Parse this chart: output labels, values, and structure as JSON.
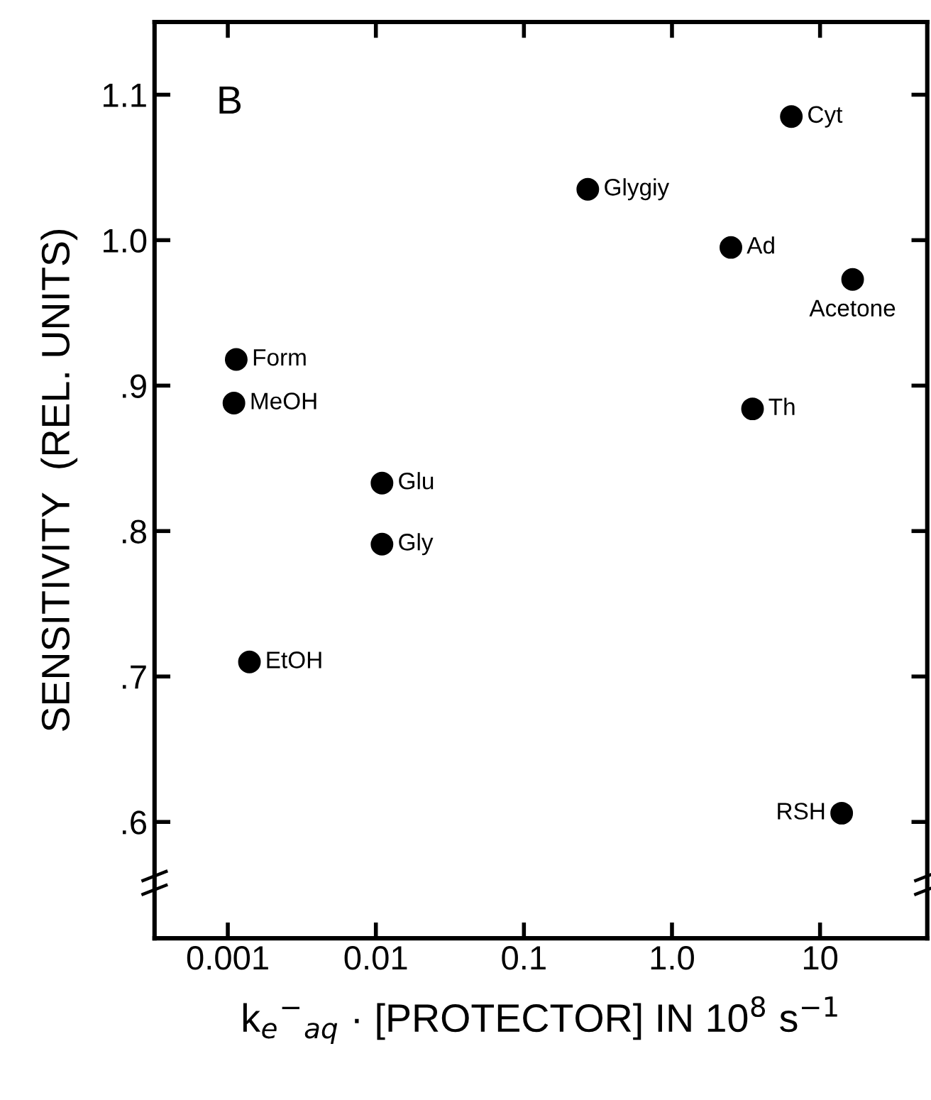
{
  "chart_data": {
    "type": "scatter",
    "xlabel": "k$_{e}$$^{−}$$_{aq}$ · [PROTECTOR] IN 10$^{8}$ s$^{−1}$",
    "ylabel": "SENSITIVITY  (REL. UNITS)",
    "log": "x",
    "x": [
      6.4,
      0.27,
      2.5,
      16.6,
      0.00114,
      0.0011,
      3.5,
      0.011,
      0.011,
      0.0014,
      14
    ],
    "series": [
      {
        "color": "#000000",
        "values": [
          1.085,
          1.035,
          0.995,
          0.973,
          0.918,
          0.888,
          0.884,
          0.833,
          0.791,
          0.71,
          0.606
        ]
      }
    ],
    "value_labels": [
      "Cyt",
      "Glygiy",
      "Ad",
      "Acetone",
      "Form",
      "MeOH",
      "Th",
      "Glu",
      "Gly",
      "EtOH",
      "RSH"
    ],
    "annotations": [
      "B"
    ],
    "xlim": [
      0.00032,
      53
    ],
    "ylim": [
      0.52,
      1.15
    ],
    "xticks": [
      0.001,
      0.01,
      0.1,
      {
        "value": 1,
        "label": "1.0"
      },
      10
    ],
    "yticks": [
      {
        "value": 0.6,
        "label": ".6"
      },
      {
        "value": 0.7,
        "label": ".7"
      },
      {
        "value": 0.8,
        "label": ".8"
      },
      {
        "value": 0.9,
        "label": ".9"
      },
      {
        "value": 1.0,
        "label": "1.0"
      },
      1.1
    ],
    "marker": "circle",
    "grid": false,
    "legend": false
  }
}
